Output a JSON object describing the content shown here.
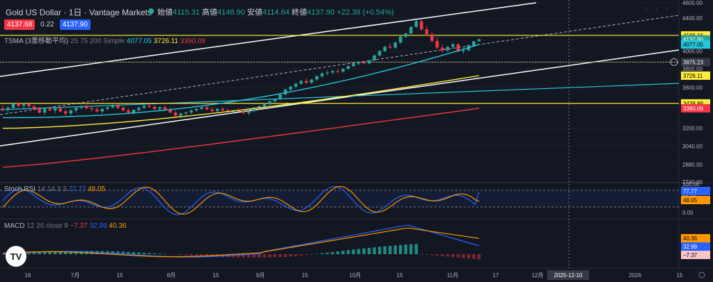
{
  "header": {
    "symbol_title": "Gold US Dollar · 1日 · Vantage Markets",
    "open_label": "始値",
    "open": "4115.31",
    "high_label": "高値",
    "high": "4148.90",
    "low_label": "安値",
    "low": "4114.64",
    "close_label": "終値",
    "close": "4137.90",
    "change": "+22.38 (+0.54%)",
    "bid": "4137.68",
    "spread": "0.22",
    "ask": "4137.90"
  },
  "indicators": {
    "tsma": {
      "name": "TSMA (3重移動平均)",
      "params": "25 75 200 Simple",
      "v1": "4077.05",
      "v2": "3726.11",
      "v3": "3390.09"
    },
    "stoch": {
      "name": "Stoch RSI",
      "params": "14 14 3 3",
      "k": "77.77",
      "d": "48.05"
    },
    "macd": {
      "name": "MACD",
      "params": "12 26 close 9",
      "hist": "−7.37",
      "macd": "32.99",
      "signal": "40.36"
    }
  },
  "colors": {
    "bg": "#131722",
    "up": "#26a69a",
    "down": "#f23645",
    "ma25": "#26c6da",
    "ma75": "#ffeb3b",
    "ma200": "#f23645",
    "k": "#2962ff",
    "d": "#ff9800"
  },
  "logo": "TV",
  "chart_data": {
    "type": "candlestick",
    "price_axis": {
      "ticks": [
        4600,
        4400,
        4200,
        4000,
        3800,
        3600,
        3400,
        3200,
        3040,
        2880,
        2740
      ],
      "ylim": [
        2740,
        4600
      ]
    },
    "time_axis": [
      "16",
      "7月",
      "15",
      "8月",
      "15",
      "9月",
      "15",
      "10月",
      "15",
      "11月",
      "17",
      "12月",
      "2025-12-10",
      "2026",
      "15"
    ],
    "price_labels": [
      {
        "value": "4186.16",
        "kind": "horizontal-line"
      },
      {
        "value": "4137.90",
        "kind": "last"
      },
      {
        "value": "4077.05",
        "kind": "ma25"
      },
      {
        "value": "3875.23",
        "kind": "crosshair"
      },
      {
        "value": "3726.11",
        "kind": "ma75"
      },
      {
        "value": "3438.89",
        "kind": "horizontal-line"
      },
      {
        "value": "3390.09",
        "kind": "ma200"
      }
    ],
    "horizontal_lines": [
      4186.16,
      3875.23,
      3438.89
    ],
    "candles": [
      [
        3388,
        3420,
        3360,
        3375
      ],
      [
        3375,
        3410,
        3340,
        3395
      ],
      [
        3395,
        3450,
        3380,
        3440
      ],
      [
        3440,
        3455,
        3400,
        3415
      ],
      [
        3415,
        3440,
        3390,
        3430
      ],
      [
        3430,
        3450,
        3405,
        3410
      ],
      [
        3410,
        3425,
        3370,
        3380
      ],
      [
        3380,
        3400,
        3340,
        3350
      ],
      [
        3350,
        3390,
        3330,
        3385
      ],
      [
        3385,
        3405,
        3360,
        3370
      ],
      [
        3370,
        3395,
        3340,
        3390
      ],
      [
        3390,
        3410,
        3350,
        3360
      ],
      [
        3360,
        3380,
        3320,
        3340
      ],
      [
        3340,
        3380,
        3320,
        3370
      ],
      [
        3370,
        3400,
        3350,
        3395
      ],
      [
        3395,
        3420,
        3380,
        3410
      ],
      [
        3410,
        3440,
        3380,
        3390
      ],
      [
        3390,
        3410,
        3360,
        3380
      ],
      [
        3380,
        3400,
        3350,
        3360
      ],
      [
        3360,
        3390,
        3340,
        3385
      ],
      [
        3385,
        3410,
        3370,
        3400
      ],
      [
        3400,
        3430,
        3390,
        3420
      ],
      [
        3420,
        3435,
        3380,
        3395
      ],
      [
        3395,
        3410,
        3360,
        3370
      ],
      [
        3370,
        3390,
        3340,
        3350
      ],
      [
        3350,
        3380,
        3330,
        3375
      ],
      [
        3375,
        3405,
        3360,
        3395
      ],
      [
        3395,
        3425,
        3385,
        3415
      ],
      [
        3415,
        3440,
        3395,
        3405
      ],
      [
        3405,
        3420,
        3370,
        3385
      ],
      [
        3385,
        3410,
        3360,
        3400
      ],
      [
        3400,
        3420,
        3375,
        3380
      ],
      [
        3380,
        3395,
        3340,
        3350
      ],
      [
        3350,
        3370,
        3300,
        3320
      ],
      [
        3320,
        3350,
        3300,
        3340
      ],
      [
        3340,
        3360,
        3310,
        3350
      ],
      [
        3350,
        3380,
        3335,
        3370
      ],
      [
        3370,
        3395,
        3355,
        3385
      ],
      [
        3385,
        3410,
        3370,
        3400
      ],
      [
        3400,
        3420,
        3370,
        3380
      ],
      [
        3380,
        3400,
        3350,
        3365
      ],
      [
        3365,
        3390,
        3345,
        3385
      ],
      [
        3385,
        3400,
        3360,
        3370
      ],
      [
        3370,
        3385,
        3340,
        3355
      ],
      [
        3355,
        3375,
        3335,
        3370
      ],
      [
        3370,
        3390,
        3350,
        3360
      ],
      [
        3360,
        3380,
        3330,
        3345
      ],
      [
        3345,
        3370,
        3325,
        3365
      ],
      [
        3365,
        3400,
        3350,
        3395
      ],
      [
        3395,
        3420,
        3380,
        3410
      ],
      [
        3410,
        3440,
        3400,
        3430
      ],
      [
        3430,
        3470,
        3420,
        3460
      ],
      [
        3460,
        3490,
        3440,
        3480
      ],
      [
        3480,
        3540,
        3470,
        3530
      ],
      [
        3530,
        3590,
        3520,
        3580
      ],
      [
        3580,
        3620,
        3560,
        3610
      ],
      [
        3610,
        3650,
        3590,
        3640
      ],
      [
        3640,
        3680,
        3630,
        3670
      ],
      [
        3670,
        3700,
        3640,
        3650
      ],
      [
        3650,
        3690,
        3640,
        3685
      ],
      [
        3685,
        3730,
        3670,
        3720
      ],
      [
        3720,
        3760,
        3700,
        3750
      ],
      [
        3750,
        3780,
        3730,
        3760
      ],
      [
        3760,
        3790,
        3740,
        3775
      ],
      [
        3775,
        3800,
        3750,
        3770
      ],
      [
        3770,
        3810,
        3760,
        3800
      ],
      [
        3800,
        3840,
        3790,
        3830
      ],
      [
        3830,
        3870,
        3820,
        3860
      ],
      [
        3860,
        3880,
        3840,
        3870
      ],
      [
        3870,
        3890,
        3850,
        3860
      ],
      [
        3860,
        3900,
        3850,
        3895
      ],
      [
        3895,
        3960,
        3890,
        3950
      ],
      [
        3950,
        4010,
        3940,
        4000
      ],
      [
        4000,
        4060,
        3990,
        4050
      ],
      [
        4050,
        4090,
        4030,
        4040
      ],
      [
        4040,
        4110,
        4030,
        4100
      ],
      [
        4100,
        4180,
        4090,
        4170
      ],
      [
        4170,
        4220,
        4150,
        4210
      ],
      [
        4210,
        4300,
        4200,
        4290
      ],
      [
        4290,
        4380,
        4280,
        4360
      ],
      [
        4360,
        4382,
        4240,
        4260
      ],
      [
        4260,
        4300,
        4180,
        4200
      ],
      [
        4200,
        4230,
        4100,
        4120
      ],
      [
        4120,
        4160,
        4020,
        4040
      ],
      [
        4040,
        4080,
        3980,
        4010
      ],
      [
        4010,
        4060,
        3990,
        4050
      ],
      [
        4050,
        4100,
        4030,
        4080
      ],
      [
        4080,
        4090,
        3990,
        4000
      ],
      [
        4000,
        4040,
        3970,
        4010
      ],
      [
        4010,
        4080,
        4000,
        4070
      ],
      [
        4070,
        4120,
        4050,
        4115
      ],
      [
        4115,
        4149,
        4114,
        4138
      ]
    ],
    "ma": {
      "ma25": {
        "name": "25",
        "start": 3300,
        "end": 4077.05
      },
      "ma75": {
        "name": "75",
        "start": 3200,
        "end": 3726.11
      },
      "ma200": {
        "name": "200",
        "start": 2860,
        "end": 3390.09
      }
    },
    "stoch_rsi": {
      "k_last": 77.77,
      "d_last": 48.05,
      "ylim": [
        0,
        100
      ],
      "ticks": [
        "100.00",
        "50.00",
        "0.00"
      ]
    },
    "macd": {
      "hist_last": -7.37,
      "macd_last": 32.99,
      "signal_last": 40.36
    }
  }
}
